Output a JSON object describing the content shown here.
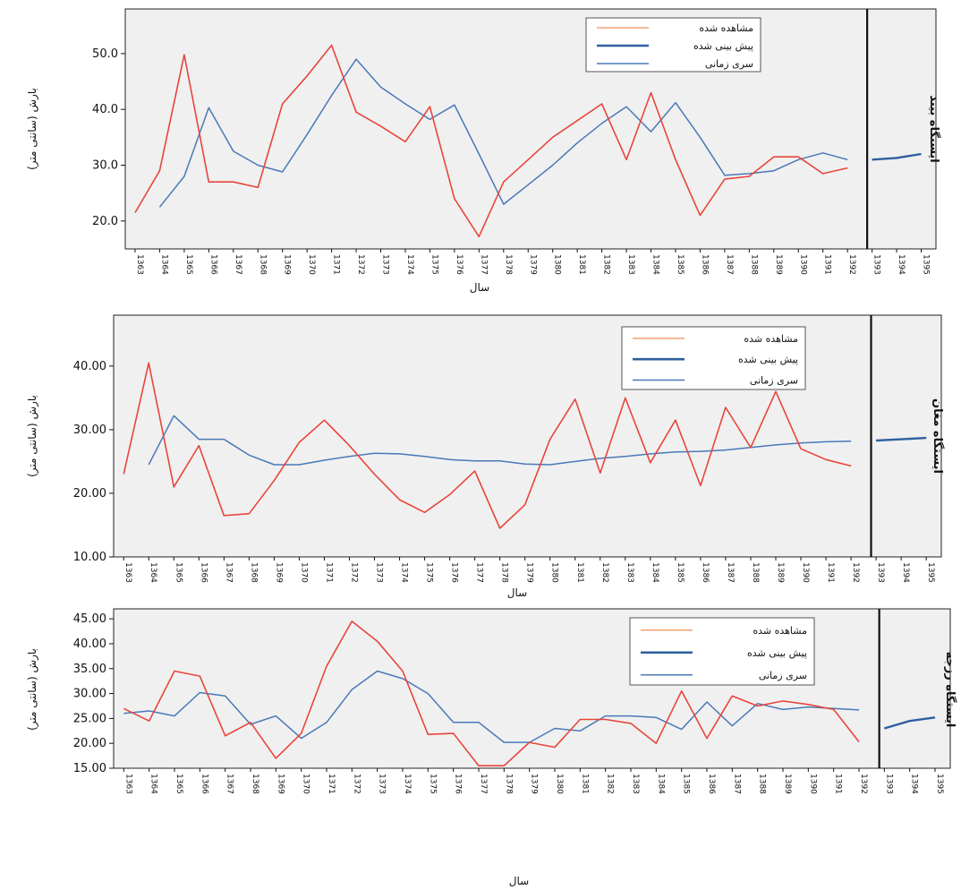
{
  "colors": {
    "observed": "#e8453c",
    "observed_legend": "#f0a070",
    "forecast": "#2f5f9e",
    "series": "#4a78b8",
    "plot_bg": "#f0f0f0",
    "panel_bg": "#ececec"
  },
  "chart_data": [
    {
      "type": "line",
      "station_label": "ایستگاه بیند",
      "xlabel": "سال",
      "ylabel": "بارش (سانتی متر)",
      "ylim": [
        15,
        58
      ],
      "yticks": [
        20,
        30,
        40,
        50
      ],
      "ytick_labels": [
        "20.0",
        "30.0",
        "40.0",
        "50.0"
      ],
      "x": [
        1363,
        1364,
        1365,
        1366,
        1367,
        1368,
        1369,
        1370,
        1371,
        1372,
        1373,
        1374,
        1375,
        1376,
        1377,
        1378,
        1379,
        1380,
        1381,
        1382,
        1383,
        1384,
        1385,
        1386,
        1387,
        1388,
        1389,
        1390,
        1391,
        1392,
        1393,
        1394,
        1395
      ],
      "xtick_labels": [
        "1363",
        "1364",
        "1365",
        "1366",
        "1367",
        "1368",
        "1369",
        "1370",
        "1371",
        "1372",
        "1373",
        "1374",
        "1375",
        "1376",
        "1377",
        "1378",
        "1379",
        "1380",
        "1381",
        "1382",
        "1383",
        "1384",
        "1385",
        "1386",
        "1387",
        "1388",
        "1389",
        "1390",
        "1391",
        "1392",
        "1393",
        "1394",
        "1395"
      ],
      "grid": false,
      "legend_position": "top-right",
      "divider_after": 1392.8,
      "series": [
        {
          "name": "مشاهده شده",
          "x": [
            1363,
            1364,
            1365,
            1366,
            1367,
            1368,
            1369,
            1370,
            1371,
            1372,
            1373,
            1374,
            1375,
            1376,
            1377,
            1378,
            1379,
            1380,
            1381,
            1382,
            1383,
            1384,
            1385,
            1386,
            1387,
            1388,
            1389,
            1390,
            1391,
            1392
          ],
          "values": [
            21.5,
            29,
            49.8,
            27,
            27,
            26,
            41,
            46,
            51.5,
            39.5,
            37,
            34.2,
            40.5,
            24,
            17.2,
            27,
            31,
            35,
            38,
            41,
            31,
            43,
            31,
            21,
            27.5,
            28,
            31.5,
            31.5,
            28.5,
            29.5
          ]
        },
        {
          "name": "پیش بینی شده",
          "x": [
            1393,
            1394,
            1395
          ],
          "values": [
            31,
            31.3,
            32
          ]
        },
        {
          "name": "سری زمانی",
          "x": [
            1364,
            1365,
            1366,
            1367,
            1368,
            1369,
            1370,
            1371,
            1372,
            1373,
            1374,
            1375,
            1376,
            1377,
            1378,
            1379,
            1380,
            1381,
            1382,
            1383,
            1384,
            1385,
            1386,
            1387,
            1388,
            1389,
            1390,
            1391,
            1392
          ],
          "values": [
            22.5,
            28,
            40.3,
            32.5,
            30,
            28.8,
            35.5,
            42.5,
            49,
            44,
            41,
            38.2,
            40.8,
            32,
            23,
            26.5,
            30,
            34,
            37.5,
            40.5,
            36,
            41.2,
            35,
            28.2,
            28.5,
            29,
            31,
            32.2,
            31
          ]
        }
      ]
    },
    {
      "type": "line",
      "station_label": "ایستگاه مغان",
      "xlabel": "سال",
      "ylabel": "بارش (سانتی متر)",
      "ylim": [
        10,
        48
      ],
      "yticks": [
        10,
        20,
        30,
        40
      ],
      "ytick_labels": [
        "10.00",
        "20.00",
        "30.00",
        "40.00"
      ],
      "x": [
        1363,
        1364,
        1365,
        1366,
        1367,
        1368,
        1369,
        1370,
        1371,
        1372,
        1373,
        1374,
        1375,
        1376,
        1377,
        1378,
        1379,
        1380,
        1381,
        1382,
        1383,
        1384,
        1385,
        1386,
        1387,
        1388,
        1389,
        1390,
        1391,
        1392,
        1393,
        1394,
        1395
      ],
      "xtick_labels": [
        "1363",
        "1364",
        "1365",
        "1366",
        "1367",
        "1368",
        "1369",
        "1370",
        "1371",
        "1372",
        "1373",
        "1374",
        "1375",
        "1376",
        "1377",
        "1378",
        "1379",
        "1380",
        "1381",
        "1382",
        "1383",
        "1384",
        "1385",
        "1386",
        "1387",
        "1388",
        "1389",
        "1390",
        "1391",
        "1392",
        "1393",
        "1394",
        "1395"
      ],
      "grid": false,
      "legend_position": "top-right",
      "divider_after": 1392.8,
      "series": [
        {
          "name": "مشاهده شده",
          "x": [
            1363,
            1364,
            1365,
            1366,
            1367,
            1368,
            1369,
            1370,
            1371,
            1372,
            1373,
            1374,
            1375,
            1376,
            1377,
            1378,
            1379,
            1380,
            1381,
            1382,
            1383,
            1384,
            1385,
            1386,
            1387,
            1388,
            1389,
            1390,
            1391,
            1392
          ],
          "values": [
            23,
            40.5,
            21,
            27.5,
            16.5,
            16.8,
            22,
            28,
            31.5,
            27.5,
            23,
            19,
            17,
            19.8,
            23.5,
            14.5,
            18.2,
            28.5,
            34.8,
            23.2,
            35,
            24.8,
            31.5,
            21.2,
            33.5,
            27.2,
            36,
            27,
            25.3,
            24.3
          ]
        },
        {
          "name": "پیش بینی شده",
          "x": [
            1393,
            1394,
            1395
          ],
          "values": [
            28.3,
            28.5,
            28.7
          ]
        },
        {
          "name": "سری زمانی",
          "x": [
            1364,
            1365,
            1366,
            1367,
            1368,
            1369,
            1370,
            1371,
            1372,
            1373,
            1374,
            1375,
            1376,
            1377,
            1378,
            1379,
            1380,
            1381,
            1382,
            1383,
            1384,
            1385,
            1386,
            1387,
            1388,
            1389,
            1390,
            1391,
            1392
          ],
          "values": [
            24.5,
            32.2,
            28.5,
            28.5,
            26,
            24.5,
            24.5,
            25.2,
            25.8,
            26.3,
            26.2,
            25.8,
            25.3,
            25.1,
            25.1,
            24.6,
            24.5,
            25,
            25.5,
            25.8,
            26.2,
            26.5,
            26.6,
            26.8,
            27.2,
            27.6,
            27.9,
            28.1,
            28.2
          ]
        }
      ]
    },
    {
      "type": "line",
      "station_label": "ایستگاه رزجه",
      "xlabel": "سال",
      "ylabel": "بارش (سانتی متر)",
      "ylim": [
        15,
        47
      ],
      "yticks": [
        15,
        20,
        25,
        30,
        35,
        40,
        45
      ],
      "ytick_labels": [
        "15.00",
        "20.00",
        "25.00",
        "30.00",
        "35.00",
        "40.00",
        "45.00"
      ],
      "x": [
        1363,
        1364,
        1365,
        1366,
        1367,
        1368,
        1369,
        1370,
        1371,
        1372,
        1373,
        1374,
        1375,
        1376,
        1377,
        1378,
        1379,
        1380,
        1381,
        1382,
        1383,
        1384,
        1385,
        1386,
        1387,
        1388,
        1389,
        1390,
        1391,
        1392,
        1393,
        1394,
        1395
      ],
      "xtick_labels": [
        "1363",
        "1364",
        "1365",
        "1366",
        "1367",
        "1368",
        "1369",
        "1370",
        "1371",
        "1372",
        "1373",
        "1374",
        "1375",
        "1376",
        "1377",
        "1378",
        "1379",
        "1380",
        "1381",
        "1382",
        "1383",
        "1384",
        "1385",
        "1386",
        "1387",
        "1388",
        "1389",
        "1390",
        "1391",
        "1392",
        "1393",
        "1394",
        "1395"
      ],
      "grid": false,
      "legend_position": "top-right",
      "divider_after": 1392.8,
      "series": [
        {
          "name": "مشاهده شده",
          "x": [
            1363,
            1364,
            1365,
            1366,
            1367,
            1368,
            1369,
            1370,
            1371,
            1372,
            1373,
            1374,
            1375,
            1376,
            1377,
            1378,
            1379,
            1380,
            1381,
            1382,
            1383,
            1384,
            1385,
            1386,
            1387,
            1388,
            1389,
            1390,
            1391,
            1392
          ],
          "values": [
            27,
            24.5,
            34.5,
            33.5,
            21.5,
            24.2,
            17,
            22,
            35.5,
            44.5,
            40.5,
            34.5,
            21.8,
            22,
            15.5,
            15.5,
            20.2,
            19.2,
            24.8,
            24.8,
            24,
            20,
            30.5,
            21,
            29.5,
            27.5,
            28.5,
            27.8,
            26.8,
            20.3
          ]
        },
        {
          "name": "پیش بینی شده",
          "x": [
            1393,
            1394,
            1395
          ],
          "values": [
            23,
            24.5,
            25.2
          ]
        },
        {
          "name": "سری زمانی",
          "x": [
            1363,
            1364,
            1365,
            1366,
            1367,
            1368,
            1369,
            1370,
            1371,
            1372,
            1373,
            1374,
            1375,
            1376,
            1377,
            1378,
            1379,
            1380,
            1381,
            1382,
            1383,
            1384,
            1385,
            1386,
            1387,
            1388,
            1389,
            1390,
            1391,
            1392
          ],
          "values": [
            26,
            26.5,
            25.5,
            30.2,
            29.5,
            23.8,
            25.5,
            21,
            24.2,
            30.8,
            34.5,
            33,
            30,
            24.2,
            24.2,
            20.2,
            20.2,
            23,
            22.5,
            25.5,
            25.5,
            25.2,
            22.8,
            28.3,
            23.5,
            28,
            26.8,
            27.3,
            27,
            26.7
          ]
        }
      ]
    }
  ]
}
